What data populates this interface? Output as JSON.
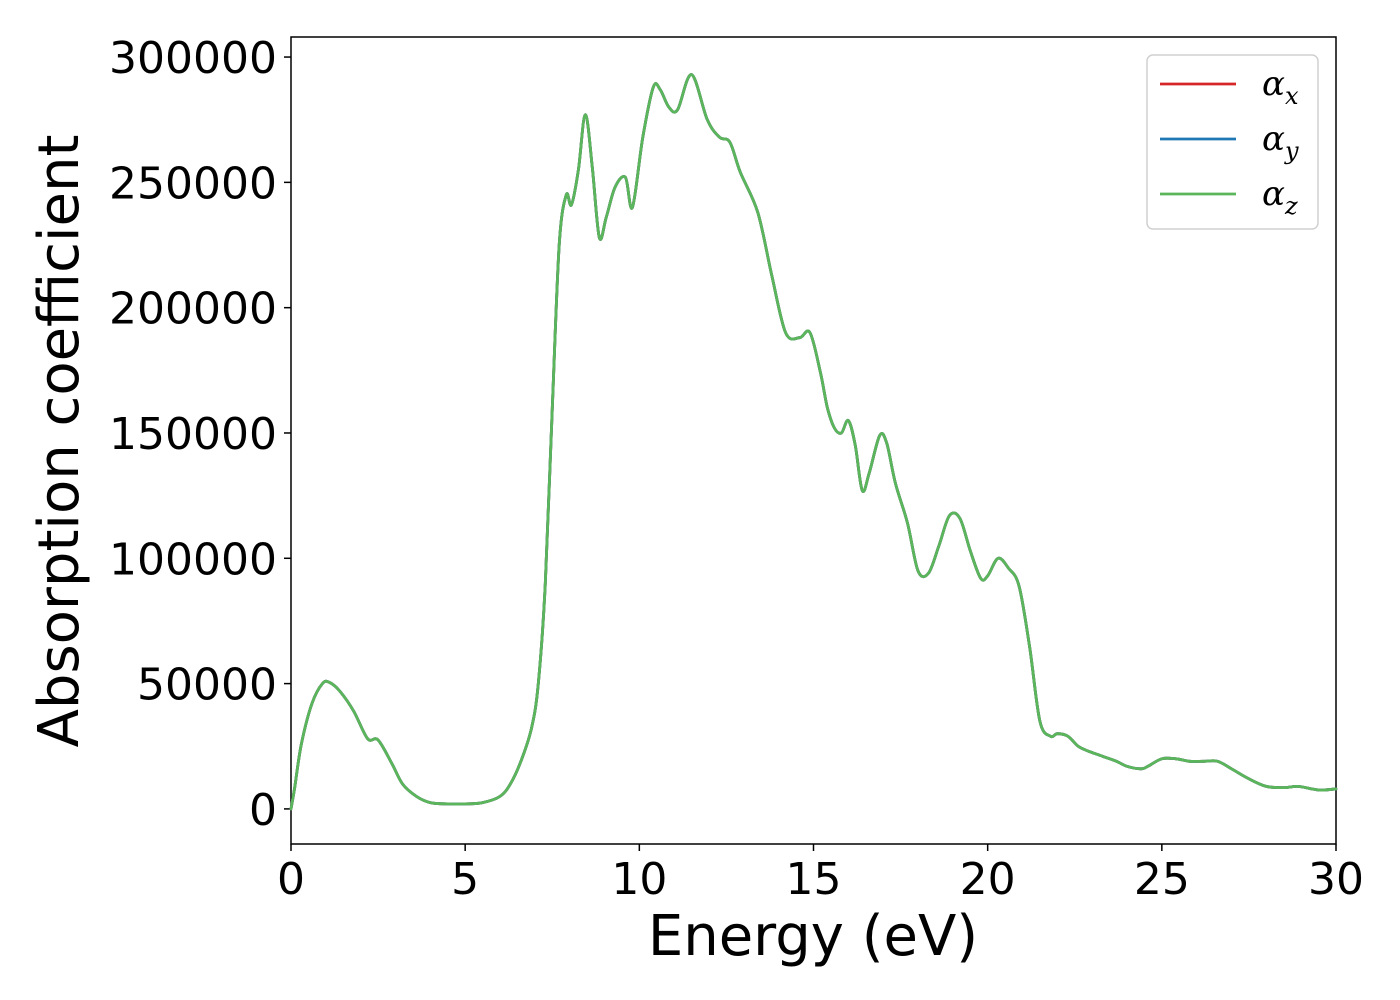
{
  "chart_data": {
    "type": "line",
    "title": "",
    "xlabel": "Energy (eV)",
    "ylabel": "Absorption coefficient",
    "xlim": [
      0,
      30
    ],
    "ylim": [
      -14000,
      308000
    ],
    "x_ticks": [
      0,
      5,
      10,
      15,
      20,
      25,
      30
    ],
    "x_tick_labels": [
      "0",
      "5",
      "10",
      "15",
      "20",
      "25",
      "30"
    ],
    "y_ticks": [
      0,
      50000,
      100000,
      150000,
      200000,
      250000,
      300000
    ],
    "y_tick_labels": [
      "0",
      "50000",
      "100000",
      "150000",
      "200000",
      "250000",
      "300000"
    ],
    "grid": false,
    "legend": {
      "placement": "top-right",
      "entries": [
        {
          "base": "α",
          "sub": "x",
          "color": "#d62728"
        },
        {
          "base": "α",
          "sub": "y",
          "color": "#1f77b4"
        },
        {
          "base": "α",
          "sub": "z",
          "color": "#5bb55b"
        }
      ]
    },
    "series": [
      {
        "name": "αx",
        "color": "#d62728",
        "x": [
          0,
          0.1,
          0.3,
          0.6,
          0.9,
          1.1,
          1.4,
          1.8,
          2.2,
          2.5,
          2.9,
          3.2,
          3.6,
          4.0,
          4.5,
          5.0,
          5.5,
          6.0,
          6.3,
          6.6,
          6.9,
          7.1,
          7.3,
          7.5,
          7.7,
          7.9,
          8.05,
          8.25,
          8.45,
          8.65,
          8.85,
          9.05,
          9.3,
          9.6,
          9.8,
          10.1,
          10.4,
          10.6,
          10.85,
          11.1,
          11.5,
          11.95,
          12.3,
          12.6,
          12.9,
          13.4,
          13.8,
          14.2,
          14.6,
          14.9,
          15.2,
          15.4,
          15.6,
          15.8,
          16.0,
          16.2,
          16.4,
          16.6,
          16.9,
          17.1,
          17.35,
          17.7,
          18.0,
          18.3,
          18.6,
          18.9,
          19.2,
          19.5,
          19.8,
          20.0,
          20.3,
          20.6,
          20.9,
          21.2,
          21.5,
          21.8,
          22.0,
          22.3,
          22.6,
          22.9,
          23.3,
          23.7,
          24.0,
          24.4,
          24.6,
          25.0,
          25.4,
          25.8,
          26.2,
          26.6,
          27.0,
          27.5,
          28.0,
          28.5,
          28.9,
          29.3,
          29.6,
          30.0
        ],
        "y": [
          0,
          8000,
          26000,
          42000,
          50000,
          50500,
          47000,
          39000,
          28000,
          27500,
          18000,
          10000,
          5000,
          2500,
          2000,
          2000,
          2500,
          5000,
          10000,
          19000,
          32000,
          50000,
          90000,
          160000,
          225000,
          245000,
          241000,
          255000,
          277000,
          256000,
          228000,
          236000,
          248000,
          252000,
          240000,
          268000,
          288000,
          287000,
          280000,
          279000,
          293000,
          275000,
          268000,
          266000,
          254000,
          238000,
          213000,
          190000,
          188000,
          190000,
          174000,
          160000,
          152000,
          150000,
          155000,
          145000,
          127000,
          134000,
          149000,
          146000,
          130000,
          114000,
          95000,
          94000,
          105000,
          117000,
          116000,
          103000,
          92000,
          93000,
          100000,
          96000,
          89000,
          65000,
          35000,
          29000,
          30000,
          29000,
          25000,
          23000,
          21000,
          19000,
          17000,
          16000,
          17000,
          20000,
          20000,
          19000,
          19000,
          19000,
          16000,
          12000,
          9000,
          8500,
          9000,
          8000,
          7500,
          8000
        ]
      },
      {
        "name": "αy",
        "color": "#1f77b4",
        "x": [
          0,
          0.1,
          0.3,
          0.6,
          0.9,
          1.1,
          1.4,
          1.8,
          2.2,
          2.5,
          2.9,
          3.2,
          3.6,
          4.0,
          4.5,
          5.0,
          5.5,
          6.0,
          6.3,
          6.6,
          6.9,
          7.1,
          7.3,
          7.5,
          7.7,
          7.9,
          8.05,
          8.25,
          8.45,
          8.65,
          8.85,
          9.05,
          9.3,
          9.6,
          9.8,
          10.1,
          10.4,
          10.6,
          10.85,
          11.1,
          11.5,
          11.95,
          12.3,
          12.6,
          12.9,
          13.4,
          13.8,
          14.2,
          14.6,
          14.9,
          15.2,
          15.4,
          15.6,
          15.8,
          16.0,
          16.2,
          16.4,
          16.6,
          16.9,
          17.1,
          17.35,
          17.7,
          18.0,
          18.3,
          18.6,
          18.9,
          19.2,
          19.5,
          19.8,
          20.0,
          20.3,
          20.6,
          20.9,
          21.2,
          21.5,
          21.8,
          22.0,
          22.3,
          22.6,
          22.9,
          23.3,
          23.7,
          24.0,
          24.4,
          24.6,
          25.0,
          25.4,
          25.8,
          26.2,
          26.6,
          27.0,
          27.5,
          28.0,
          28.5,
          28.9,
          29.3,
          29.6,
          30.0
        ],
        "y": [
          0,
          8000,
          26000,
          42000,
          50000,
          50500,
          47000,
          39000,
          28000,
          27500,
          18000,
          10000,
          5000,
          2500,
          2000,
          2000,
          2500,
          5000,
          10000,
          19000,
          32000,
          50000,
          90000,
          160000,
          225000,
          245000,
          241000,
          255000,
          277000,
          256000,
          228000,
          236000,
          248000,
          252000,
          240000,
          268000,
          288000,
          287000,
          280000,
          279000,
          293000,
          275000,
          268000,
          266000,
          254000,
          238000,
          213000,
          190000,
          188000,
          190000,
          174000,
          160000,
          152000,
          150000,
          155000,
          145000,
          127000,
          134000,
          149000,
          146000,
          130000,
          114000,
          95000,
          94000,
          105000,
          117000,
          116000,
          103000,
          92000,
          93000,
          100000,
          96000,
          89000,
          65000,
          35000,
          29000,
          30000,
          29000,
          25000,
          23000,
          21000,
          19000,
          17000,
          16000,
          17000,
          20000,
          20000,
          19000,
          19000,
          19000,
          16000,
          12000,
          9000,
          8500,
          9000,
          8000,
          7500,
          8000
        ]
      },
      {
        "name": "αz",
        "color": "#5bb55b",
        "x": [
          0,
          0.1,
          0.3,
          0.6,
          0.9,
          1.1,
          1.4,
          1.8,
          2.2,
          2.5,
          2.9,
          3.2,
          3.6,
          4.0,
          4.5,
          5.0,
          5.5,
          6.0,
          6.3,
          6.6,
          6.9,
          7.1,
          7.3,
          7.5,
          7.7,
          7.9,
          8.05,
          8.25,
          8.45,
          8.65,
          8.85,
          9.05,
          9.3,
          9.6,
          9.8,
          10.1,
          10.4,
          10.6,
          10.85,
          11.1,
          11.5,
          11.95,
          12.3,
          12.6,
          12.9,
          13.4,
          13.8,
          14.2,
          14.6,
          14.9,
          15.2,
          15.4,
          15.6,
          15.8,
          16.0,
          16.2,
          16.4,
          16.6,
          16.9,
          17.1,
          17.35,
          17.7,
          18.0,
          18.3,
          18.6,
          18.9,
          19.2,
          19.5,
          19.8,
          20.0,
          20.3,
          20.6,
          20.9,
          21.2,
          21.5,
          21.8,
          22.0,
          22.3,
          22.6,
          22.9,
          23.3,
          23.7,
          24.0,
          24.4,
          24.6,
          25.0,
          25.4,
          25.8,
          26.2,
          26.6,
          27.0,
          27.5,
          28.0,
          28.5,
          28.9,
          29.3,
          29.6,
          30.0
        ],
        "y": [
          0,
          8000,
          26000,
          42000,
          50000,
          50500,
          47000,
          39000,
          28000,
          27500,
          18000,
          10000,
          5000,
          2500,
          2000,
          2000,
          2500,
          5000,
          10000,
          19000,
          32000,
          50000,
          90000,
          160000,
          225000,
          245000,
          241000,
          255000,
          277000,
          256000,
          228000,
          236000,
          248000,
          252000,
          240000,
          268000,
          288000,
          287000,
          280000,
          279000,
          293000,
          275000,
          268000,
          266000,
          254000,
          238000,
          213000,
          190000,
          188000,
          190000,
          174000,
          160000,
          152000,
          150000,
          155000,
          145000,
          127000,
          134000,
          149000,
          146000,
          130000,
          114000,
          95000,
          94000,
          105000,
          117000,
          116000,
          103000,
          92000,
          93000,
          100000,
          96000,
          89000,
          65000,
          35000,
          29000,
          30000,
          29000,
          25000,
          23000,
          21000,
          19000,
          17000,
          16000,
          17000,
          20000,
          20000,
          19000,
          19000,
          19000,
          16000,
          12000,
          9000,
          8500,
          9000,
          8000,
          7500,
          8000
        ]
      }
    ]
  }
}
